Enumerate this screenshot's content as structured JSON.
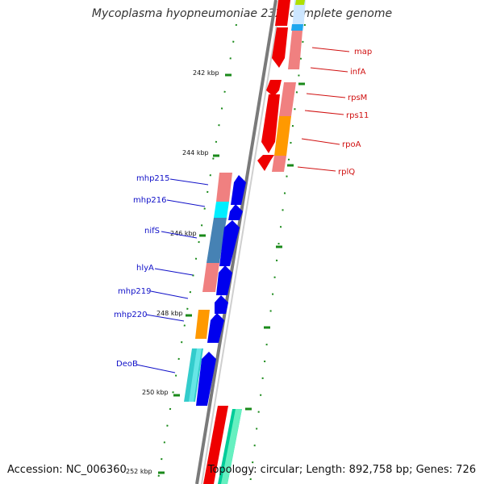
{
  "title": "Mycoplasma hyopneumoniae 232, complete genome",
  "accession": "Accession: NC_006360",
  "summary": "Topology: circular; Length: 892,758 bp; Genes: 726",
  "colors": {
    "backbone": "#8a8a8a",
    "tick": "#1a8a1a",
    "forward_label": "#1010c8",
    "reverse_label": "#d01010",
    "cds_forward": "#0000ee",
    "cds_reverse": "#ee0000"
  },
  "ticks": [
    "242 kbp",
    "244 kbp",
    "246 kbp",
    "248 kbp",
    "250 kbp",
    "252 kbp"
  ],
  "forward_genes": [
    "mhp215",
    "mhp216",
    "nifS",
    "hlyA",
    "mhp219",
    "mhp220",
    "DeoB"
  ],
  "reverse_genes": [
    "map",
    "infA",
    "rpsM",
    "rps11",
    "rpoA",
    "rplQ"
  ]
}
